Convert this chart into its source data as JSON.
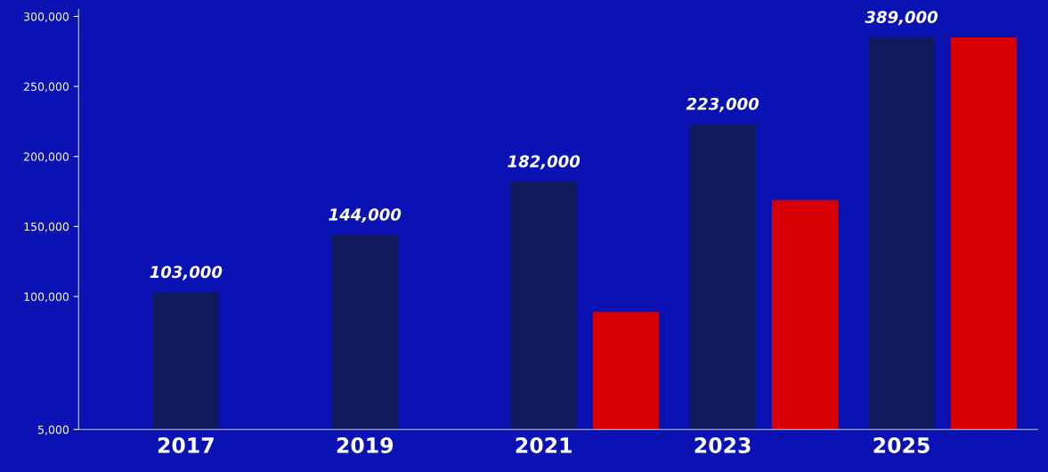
{
  "chart_data": {
    "type": "bar",
    "categories": [
      "2017",
      "2019",
      "2021",
      "2023",
      "2025"
    ],
    "series": [
      {
        "color": "#101a5c",
        "values": [
          103000,
          144000,
          182000,
          223000,
          285000
        ],
        "value_labels": [
          "103,000",
          "144,000",
          "182,000",
          "223,000",
          null
        ]
      },
      {
        "color": "#d80000",
        "values": [
          null,
          null,
          89000,
          169000,
          285000
        ]
      }
    ],
    "annotations": [
      {
        "text": "389,000",
        "x": "2025",
        "y": 285000
      }
    ],
    "ylim": [
      5000,
      305000
    ],
    "yticks": [
      {
        "value": 5000,
        "label": "5,000"
      },
      {
        "value": 100000,
        "label": "100,000"
      },
      {
        "value": 150000,
        "label": "150,000"
      },
      {
        "value": 200000,
        "label": "200,000"
      },
      {
        "value": 250000,
        "label": "250,000"
      },
      {
        "value": 300000,
        "label": "300,000"
      }
    ],
    "grid": false
  }
}
